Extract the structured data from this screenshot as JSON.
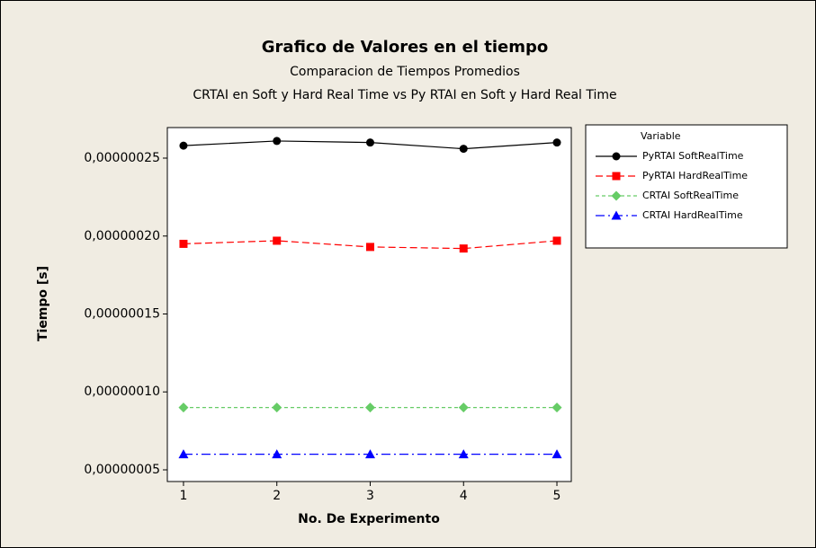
{
  "chart_data": {
    "type": "line",
    "title": "Grafico de Valores en el tiempo",
    "subtitle": [
      "Comparacion de Tiempos Promedios",
      "CRTAI en Soft y Hard Real Time vs Py RTAI en Soft y Hard Real Time"
    ],
    "xlabel": "No. De Experimento",
    "ylabel": "Tiempo [s]",
    "legend_title": "Variable",
    "legend": "right",
    "x": [
      1,
      2,
      3,
      4,
      5
    ],
    "xlim": [
      0.827,
      5.154
    ],
    "xticks": [
      1,
      2,
      3,
      4,
      5
    ],
    "ylim": [
      4.25e-08,
      2.696e-07
    ],
    "yticks": [
      {
        "value": 5e-08,
        "label": "0,00000005"
      },
      {
        "value": 1e-07,
        "label": "0,00000010"
      },
      {
        "value": 1.5e-07,
        "label": "0,00000015"
      },
      {
        "value": 2e-07,
        "label": "0,00000020"
      },
      {
        "value": 2.5e-07,
        "label": "0,00000025"
      }
    ],
    "series": [
      {
        "name": "PyRTAI SoftRealTime",
        "color": "#000000",
        "marker": "circle",
        "line_style": "solid",
        "values": [
          2.58e-07,
          2.61e-07,
          2.6e-07,
          2.56e-07,
          2.6e-07
        ]
      },
      {
        "name": "PyRTAI HardRealTime",
        "color": "#ff0000",
        "marker": "square",
        "line_style": "dashed",
        "values": [
          1.95e-07,
          1.97e-07,
          1.93e-07,
          1.92e-07,
          1.97e-07
        ]
      },
      {
        "name": "CRTAI SoftRealTime",
        "color": "#66cc66",
        "marker": "diamond",
        "line_style": "short-dashed",
        "values": [
          9e-08,
          9e-08,
          9e-08,
          9e-08,
          9e-08
        ]
      },
      {
        "name": "CRTAI HardRealTime",
        "color": "#0000ff",
        "marker": "triangle",
        "line_style": "dash-dot",
        "values": [
          6e-08,
          6e-08,
          6e-08,
          6e-08,
          6e-08
        ]
      }
    ]
  }
}
